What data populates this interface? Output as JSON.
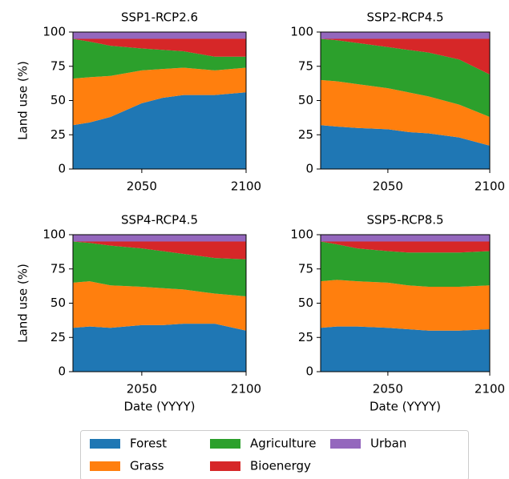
{
  "chart_data": [
    {
      "type": "area",
      "title": "SSP1-RCP2.6",
      "ylabel": "Land use (%)",
      "x": [
        2017,
        2025,
        2035,
        2050,
        2060,
        2070,
        2085,
        2100
      ],
      "series": [
        {
          "name": "Forest",
          "color": "#1f77b4",
          "values": [
            32,
            34,
            38,
            48,
            52,
            54,
            54,
            56
          ]
        },
        {
          "name": "Grass",
          "color": "#ff7f0e",
          "values": [
            34,
            33,
            30,
            24,
            21,
            20,
            18,
            18
          ]
        },
        {
          "name": "Agriculture",
          "color": "#2ca02c",
          "values": [
            29,
            26,
            22,
            16,
            14,
            12,
            10,
            8
          ]
        },
        {
          "name": "Bioenergy",
          "color": "#d62728",
          "values": [
            0,
            2,
            5,
            7,
            8,
            9,
            13,
            13
          ]
        },
        {
          "name": "Urban",
          "color": "#9467bd",
          "values": [
            5,
            5,
            5,
            5,
            5,
            5,
            5,
            5
          ]
        }
      ],
      "xlim": [
        2017,
        2100
      ],
      "xticks": [
        2050,
        2100
      ],
      "ylim": [
        0,
        100
      ],
      "yticks": [
        0,
        25,
        50,
        75,
        100
      ]
    },
    {
      "type": "area",
      "title": "SSP2-RCP4.5",
      "x": [
        2017,
        2025,
        2035,
        2050,
        2060,
        2070,
        2085,
        2100
      ],
      "series": [
        {
          "values": [
            32,
            31,
            30,
            29,
            27,
            26,
            23,
            17
          ]
        },
        {
          "values": [
            33,
            33,
            32,
            30,
            29,
            27,
            24,
            21
          ]
        },
        {
          "values": [
            30,
            30,
            30,
            30,
            31,
            32,
            33,
            31
          ]
        },
        {
          "values": [
            0,
            1,
            3,
            6,
            8,
            10,
            15,
            26
          ]
        },
        {
          "values": [
            5,
            5,
            5,
            5,
            5,
            5,
            5,
            5
          ]
        }
      ],
      "xlim": [
        2017,
        2100
      ],
      "xticks": [
        2050,
        2100
      ],
      "ylim": [
        0,
        100
      ],
      "yticks": [
        0,
        25,
        50,
        75,
        100
      ]
    },
    {
      "type": "area",
      "title": "SSP4-RCP4.5",
      "ylabel": "Land use (%)",
      "xlabel": "Date (YYYY)",
      "x": [
        2017,
        2025,
        2035,
        2050,
        2060,
        2070,
        2085,
        2100
      ],
      "series": [
        {
          "values": [
            32,
            33,
            32,
            34,
            34,
            35,
            35,
            30
          ]
        },
        {
          "values": [
            33,
            33,
            31,
            28,
            27,
            25,
            22,
            25
          ]
        },
        {
          "values": [
            30,
            28,
            29,
            28,
            27,
            26,
            26,
            27
          ]
        },
        {
          "values": [
            0,
            1,
            3,
            5,
            7,
            9,
            12,
            13
          ]
        },
        {
          "values": [
            5,
            5,
            5,
            5,
            5,
            5,
            5,
            5
          ]
        }
      ],
      "xlim": [
        2017,
        2100
      ],
      "xticks": [
        2050,
        2100
      ],
      "ylim": [
        0,
        100
      ],
      "yticks": [
        0,
        25,
        50,
        75,
        100
      ]
    },
    {
      "type": "area",
      "title": "SSP5-RCP8.5",
      "xlabel": "Date (YYYY)",
      "x": [
        2017,
        2025,
        2035,
        2050,
        2060,
        2070,
        2085,
        2100
      ],
      "series": [
        {
          "values": [
            32,
            33,
            33,
            32,
            31,
            30,
            30,
            31
          ]
        },
        {
          "values": [
            34,
            34,
            33,
            33,
            32,
            32,
            32,
            32
          ]
        },
        {
          "values": [
            29,
            26,
            24,
            23,
            24,
            25,
            25,
            25
          ]
        },
        {
          "values": [
            0,
            2,
            5,
            7,
            8,
            8,
            8,
            7
          ]
        },
        {
          "values": [
            5,
            5,
            5,
            5,
            5,
            5,
            5,
            5
          ]
        }
      ],
      "xlim": [
        2017,
        2100
      ],
      "xticks": [
        2050,
        2100
      ],
      "ylim": [
        0,
        100
      ],
      "yticks": [
        0,
        25,
        50,
        75,
        100
      ]
    }
  ]
}
